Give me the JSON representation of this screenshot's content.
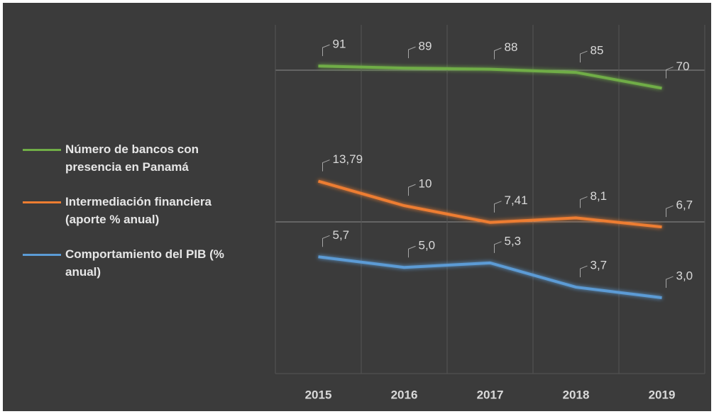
{
  "chart_data": {
    "type": "line",
    "categories": [
      "2015",
      "2016",
      "2017",
      "2018",
      "2019"
    ],
    "series": [
      {
        "name": "Número de bancos con presencia en Panamá",
        "color": "#70ad47",
        "values": [
          91,
          89,
          88,
          85,
          70
        ],
        "ylim": [
          -200,
          130
        ]
      },
      {
        "name": "Intermediación financiera (aporte % anual)",
        "color": "#ed7d31",
        "values": [
          13.79,
          10,
          7.41,
          8.1,
          6.7
        ],
        "value_labels": [
          "13,79",
          "10",
          "7,41",
          "8,1",
          "6,7"
        ],
        "ylim": [
          -16,
          38
        ]
      },
      {
        "name": "Comportamiento del PIB (% anual)",
        "color": "#5b9bd5",
        "values": [
          5.7,
          5.0,
          5.3,
          3.7,
          3.0
        ],
        "value_labels": [
          "5,7",
          "5,0",
          "5,3",
          "3,7",
          "3,0"
        ],
        "ylim": [
          -2,
          21
        ]
      }
    ],
    "grid": true,
    "legend": "left"
  }
}
